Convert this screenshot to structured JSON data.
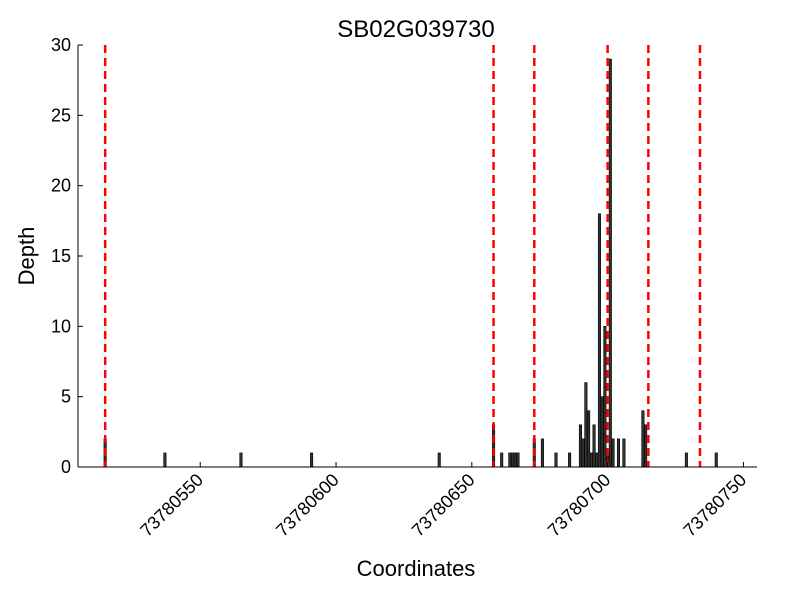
{
  "chart_data": {
    "type": "bar",
    "title": "SB02G039730",
    "xlabel": "Coordinates",
    "ylabel": "Depth",
    "xlim": [
      73780505,
      73780755
    ],
    "ylim": [
      0,
      30
    ],
    "x_ticks": [
      73780550,
      73780600,
      73780650,
      73780700,
      73780750
    ],
    "y_ticks": [
      0,
      5,
      10,
      15,
      20,
      25,
      30
    ],
    "grid": false,
    "bar_color": "#333333",
    "bar_edge_color": "#000000",
    "marker_color": "#ff0000",
    "series": [
      {
        "x": [
          73780515,
          73780537,
          73780565,
          73780591,
          73780638,
          73780658,
          73780661,
          73780664,
          73780665,
          73780666,
          73780667,
          73780673,
          73780676,
          73780681,
          73780686,
          73780690,
          73780691,
          73780692,
          73780693,
          73780694,
          73780695,
          73780696,
          73780697,
          73780698,
          73780699,
          73780700,
          73780701,
          73780702,
          73780704,
          73780706,
          73780713,
          73780714,
          73780729,
          73780740
        ],
        "values": [
          2,
          1,
          1,
          1,
          1,
          3,
          1,
          1,
          1,
          1,
          1,
          2,
          2,
          1,
          1,
          3,
          2,
          6,
          4,
          1,
          3,
          1,
          18,
          5,
          10,
          1,
          29,
          2,
          2,
          2,
          4,
          3,
          1,
          1
        ]
      }
    ],
    "vertical_markers": [
      73780515,
      73780658,
      73780673,
      73780700,
      73780715,
      73780734
    ]
  }
}
